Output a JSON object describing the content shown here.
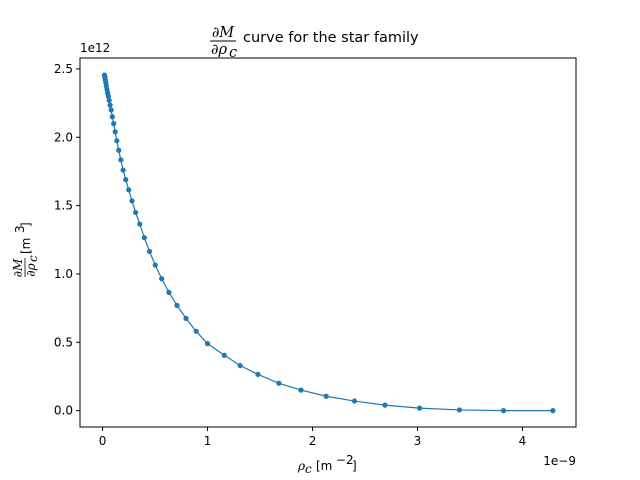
{
  "chart_data": {
    "type": "line",
    "title_prefix_num": "∂M",
    "title_prefix_den": "∂ρ",
    "title_prefix_den_sub": "c",
    "title_suffix": "curve for the star family",
    "xlabel_sym": "ρ",
    "xlabel_sub": "c",
    "xlabel_unit_open": "[m",
    "xlabel_unit_exp": "−2",
    "xlabel_unit_close": "]",
    "ylabel_num": "∂M",
    "ylabel_den": "∂ρ",
    "ylabel_den_sub": "c",
    "ylabel_unit_open": "[m",
    "ylabel_unit_exp": "3",
    "ylabel_unit_close": "]",
    "x_offset_label": "1e−9",
    "y_offset_label": "1e12",
    "x_scale": 1e-09,
    "y_scale": 1000000000000.0,
    "xlim": [
      -0.215,
      4.51
    ],
    "ylim": [
      -0.12,
      2.58
    ],
    "x_ticks": [
      0,
      1,
      2,
      3,
      4
    ],
    "x_tick_labels": [
      "0",
      "1",
      "2",
      "3",
      "4"
    ],
    "y_ticks": [
      0.0,
      0.5,
      1.0,
      1.5,
      2.0,
      2.5
    ],
    "y_tick_labels": [
      "0.0",
      "0.5",
      "1.0",
      "1.5",
      "2.0",
      "2.5"
    ],
    "grid": false,
    "colors": {
      "series": "#1f77b4"
    },
    "series": [
      {
        "x": [
          0.018,
          0.022,
          0.026,
          0.031,
          0.036,
          0.042,
          0.048,
          0.055,
          0.063,
          0.072,
          0.082,
          0.093,
          0.106,
          0.12,
          0.136,
          0.154,
          0.174,
          0.196,
          0.221,
          0.249,
          0.28,
          0.315,
          0.354,
          0.398,
          0.447,
          0.502,
          0.563,
          0.632,
          0.709,
          0.795,
          0.892,
          1.0,
          1.16,
          1.31,
          1.48,
          1.68,
          1.89,
          2.13,
          2.4,
          2.69,
          3.02,
          3.4,
          3.82,
          4.29
        ],
        "y": [
          2.455,
          2.44,
          2.42,
          2.4,
          2.375,
          2.35,
          2.325,
          2.3,
          2.27,
          2.235,
          2.2,
          2.15,
          2.1,
          2.04,
          1.975,
          1.905,
          1.835,
          1.76,
          1.69,
          1.615,
          1.535,
          1.45,
          1.365,
          1.265,
          1.165,
          1.065,
          0.965,
          0.865,
          0.77,
          0.675,
          0.58,
          0.49,
          0.405,
          0.33,
          0.265,
          0.2,
          0.15,
          0.105,
          0.07,
          0.04,
          0.018,
          0.005,
          0.0,
          0.0
        ]
      }
    ]
  }
}
